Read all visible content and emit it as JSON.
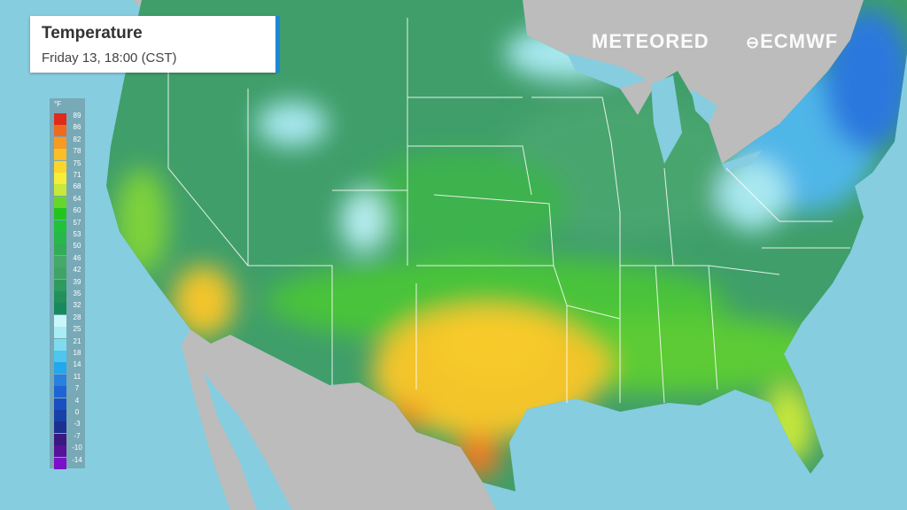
{
  "header": {
    "title": "Temperature",
    "subtitle": "Friday 13, 18:00 (CST)"
  },
  "brand": {
    "meteored": "METEORED",
    "ecmwf": "ECMWF"
  },
  "legend": {
    "unit": "°F",
    "labels": [
      "89",
      "86",
      "82",
      "78",
      "75",
      "71",
      "68",
      "64",
      "60",
      "57",
      "53",
      "50",
      "46",
      "42",
      "39",
      "35",
      "32",
      "28",
      "25",
      "21",
      "18",
      "14",
      "11",
      "7",
      "4",
      "0",
      "-3",
      "-7",
      "-10",
      "-14"
    ],
    "colors": [
      "#e02a1c",
      "#f06a1e",
      "#f79a22",
      "#fbbf26",
      "#fcd62a",
      "#f7ee3a",
      "#c8e83a",
      "#66d62a",
      "#22c51e",
      "#1fc23a",
      "#28b84a",
      "#30ad55",
      "#45a96a",
      "#3ea466",
      "#2f9a5e",
      "#22905a",
      "#168a5c",
      "#c9f6f8",
      "#a8ecf4",
      "#7fdcef",
      "#4ec6ee",
      "#22a8ec",
      "#2a80e0",
      "#1f64d4",
      "#1a4fc0",
      "#1740a8",
      "#1a2f90",
      "#3a1880",
      "#56129a",
      "#7a10c8"
    ]
  },
  "colors": {
    "ocean": "#86cde0",
    "land_outside": "#bcbcbc",
    "us_base": "#3f9e6a"
  }
}
